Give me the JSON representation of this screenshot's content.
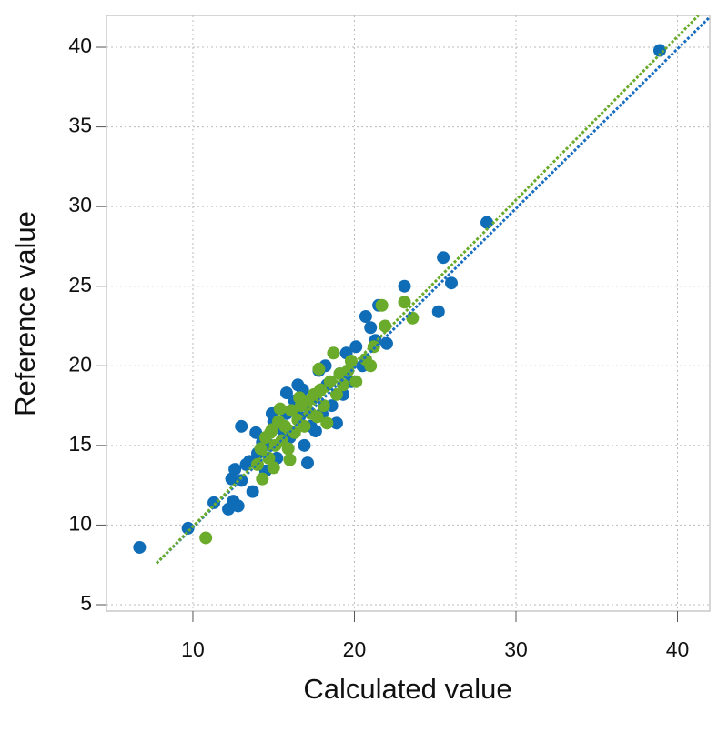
{
  "chart_data": {
    "type": "scatter",
    "xlabel": "Calculated value",
    "ylabel": "Reference value",
    "xlim": [
      4.65,
      42
    ],
    "ylim": [
      4.6,
      42
    ],
    "xticks": [
      10,
      20,
      30,
      40
    ],
    "yticks": [
      5,
      10,
      15,
      20,
      25,
      30,
      35,
      40
    ],
    "grid": true,
    "series": [
      {
        "color": "#0f6cb6",
        "x": [
          6.7,
          9.7,
          11.3,
          12.2,
          12.5,
          12.8,
          12.4,
          12.6,
          13.0,
          13.3,
          13.0,
          13.7,
          13.5,
          14.0,
          14.3,
          14.8,
          15.0,
          15.5,
          15.2,
          15.8,
          16.0,
          16.3,
          16.6,
          16.8,
          17.1,
          17.0,
          17.3,
          17.5,
          17.8,
          18.0,
          18.3,
          18.6,
          18.9,
          19.1,
          19.5,
          19.8,
          20.1,
          20.5,
          20.7,
          21.0,
          21.3,
          21.5,
          22.0,
          23.1,
          25.2,
          25.5,
          26.0,
          28.2,
          38.9,
          15.8,
          16.5,
          14.5,
          13.9,
          17.6,
          18.2,
          19.3,
          14.9,
          16.9
        ],
        "y": [
          8.6,
          9.8,
          11.4,
          11.0,
          11.5,
          11.2,
          12.9,
          13.5,
          12.8,
          13.8,
          16.2,
          12.1,
          14.0,
          14.5,
          15.2,
          15.0,
          16.5,
          16.0,
          14.2,
          17.0,
          15.5,
          17.8,
          16.8,
          18.5,
          13.9,
          17.5,
          16.2,
          18.0,
          19.7,
          17.0,
          18.8,
          17.5,
          16.4,
          19.5,
          20.8,
          19.0,
          21.2,
          20.0,
          23.1,
          22.4,
          21.6,
          23.8,
          21.4,
          25.0,
          23.4,
          26.8,
          25.2,
          29.0,
          39.8,
          18.3,
          18.8,
          13.4,
          15.8,
          15.9,
          20.0,
          18.2,
          17.0,
          15.0
        ]
      },
      {
        "color": "#6aab2b",
        "x": [
          10.8,
          14.0,
          14.2,
          14.5,
          14.7,
          14.9,
          15.1,
          15.3,
          15.5,
          15.7,
          15.9,
          16.1,
          16.3,
          16.5,
          16.7,
          16.9,
          17.1,
          17.3,
          17.5,
          17.7,
          17.9,
          18.1,
          18.3,
          18.5,
          18.7,
          18.9,
          19.1,
          19.3,
          19.6,
          19.8,
          20.1,
          20.7,
          21.0,
          21.2,
          21.7,
          21.9,
          23.1,
          23.6,
          14.3,
          15.0,
          16.0,
          15.4,
          14.8,
          16.6,
          17.8
        ],
        "y": [
          9.2,
          13.8,
          14.8,
          15.5,
          14.2,
          16.0,
          15.0,
          16.5,
          15.3,
          16.2,
          14.8,
          17.2,
          15.8,
          16.6,
          17.5,
          16.2,
          17.8,
          17.0,
          18.2,
          16.8,
          18.5,
          17.5,
          16.4,
          19.0,
          20.8,
          18.2,
          19.5,
          18.8,
          19.7,
          20.3,
          19.0,
          20.4,
          20.0,
          21.2,
          23.8,
          22.5,
          24.0,
          23.0,
          12.9,
          13.6,
          14.1,
          17.3,
          15.8,
          18.0,
          19.8
        ]
      }
    ],
    "fits": [
      {
        "color": "#1a6fc0",
        "x": [
          7.75,
          42
        ],
        "y": [
          7.6,
          41.9
        ]
      },
      {
        "color": "#6aab2b",
        "x": [
          7.75,
          41.3
        ],
        "y": [
          7.6,
          42
        ]
      }
    ]
  }
}
